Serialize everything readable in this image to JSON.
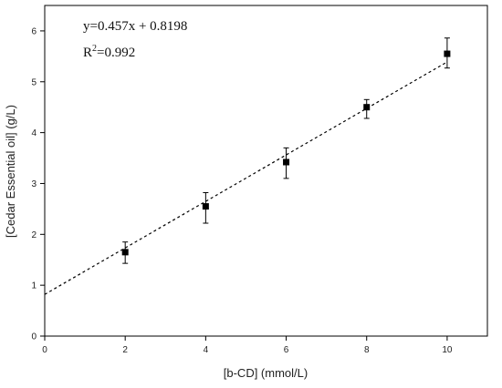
{
  "chart_data": {
    "type": "scatter",
    "title": "",
    "xlabel": "[b-CD] (mmol/L)",
    "ylabel": "[Cedar Essential oil] (g/L)",
    "xlim": [
      0,
      11
    ],
    "ylim": [
      0,
      6.5
    ],
    "x_ticks": [
      0,
      2,
      4,
      6,
      8,
      10
    ],
    "y_ticks": [
      0,
      1,
      2,
      3,
      4,
      5,
      6
    ],
    "grid": false,
    "series": [
      {
        "x": [
          2,
          4,
          6,
          8,
          10
        ],
        "y": [
          1.65,
          2.55,
          3.42,
          4.5,
          5.55
        ],
        "error_low": [
          1.43,
          2.22,
          3.1,
          4.28,
          5.27
        ],
        "error_high": [
          1.85,
          2.82,
          3.7,
          4.65,
          5.86
        ],
        "marker": "square",
        "color": "#000000"
      }
    ],
    "trendline": {
      "slope": 0.457,
      "intercept": 0.8198,
      "style": "dashed",
      "color": "#000000"
    },
    "annotations": {
      "equation": "y=0.457x + 0.8198",
      "r_squared_base": "R",
      "r_squared_exp": "2",
      "r_squared_value": "=0.992"
    }
  }
}
